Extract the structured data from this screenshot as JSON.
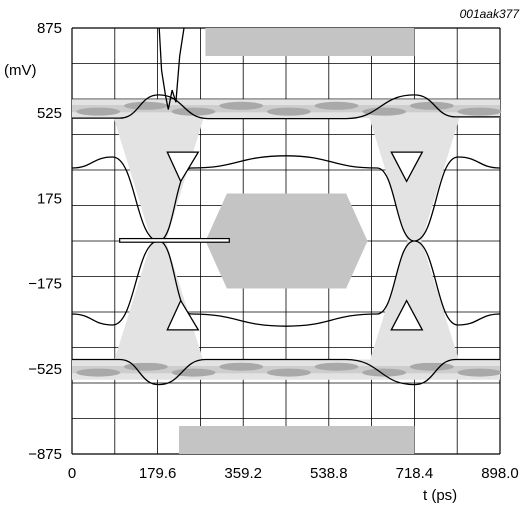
{
  "chart_data": {
    "type": "eye-diagram",
    "figure_id": "001aak377",
    "xlabel": "t (ps)",
    "ylabel": "(mV)",
    "xlim": [
      0,
      898.0
    ],
    "ylim": [
      -875,
      875
    ],
    "x_ticks": [
      0,
      179.6,
      359.2,
      538.8,
      718.4,
      898.0
    ],
    "x_tick_labels": [
      "0",
      "179.6",
      "359.2",
      "538.8",
      "718.4",
      "898.0"
    ],
    "y_ticks": [
      875,
      525,
      175,
      -175,
      -525,
      -875
    ],
    "y_tick_labels": [
      "875",
      "525",
      "175",
      "−175",
      "−525",
      "−875"
    ],
    "grid": true,
    "colors": {
      "mask": "#c4c4c4",
      "trace_dark": "#a9a9a9",
      "trace_mid": "#cdcdcd",
      "trace_light": "#e3e3e3",
      "line": "#000000"
    },
    "center_mask_polygon": [
      [
        280,
        0
      ],
      [
        325,
        195
      ],
      [
        575,
        195
      ],
      [
        620,
        0
      ],
      [
        575,
        -195
      ],
      [
        325,
        -195
      ]
    ],
    "top_mask_rect": {
      "x": [
        280,
        718.4
      ],
      "y": [
        760,
        875
      ]
    },
    "bottom_mask_rect": {
      "x": [
        224.5,
        718.4
      ],
      "y": [
        -760,
        -875
      ]
    },
    "upper_rail": {
      "x": [
        0,
        898
      ],
      "y_top": 582,
      "y_bottom": 505
    },
    "lower_rail": {
      "x": [
        0,
        898
      ],
      "y_top": -487,
      "y_bottom": -570
    },
    "eye_outline": [
      [
        [
          0,
          505
        ],
        [
          100,
          505
        ],
        [
          182,
          600
        ],
        [
          286,
          503
        ],
        [
          575,
          503
        ],
        [
          718.4,
          600
        ],
        [
          805,
          510
        ],
        [
          898,
          510
        ]
      ],
      [
        [
          0,
          -487
        ],
        [
          100,
          -487
        ],
        [
          182,
          -590
        ],
        [
          280,
          -487
        ],
        [
          575,
          -487
        ],
        [
          718.4,
          -590
        ],
        [
          805,
          -487
        ],
        [
          898,
          -487
        ]
      ],
      [
        [
          0,
          300
        ],
        [
          85,
          345
        ],
        [
          182,
          0
        ],
        [
          85,
          -345
        ],
        [
          0,
          -300
        ]
      ],
      [
        [
          898,
          300
        ],
        [
          810,
          345
        ],
        [
          718.4,
          0
        ],
        [
          810,
          -345
        ],
        [
          898,
          -300
        ]
      ],
      [
        [
          182,
          0
        ],
        [
          250,
          300
        ],
        [
          449,
          350
        ],
        [
          640,
          300
        ],
        [
          718.4,
          0
        ],
        [
          640,
          -300
        ],
        [
          449,
          -350
        ],
        [
          250,
          -300
        ],
        [
          182,
          0
        ]
      ]
    ],
    "inner_triangles": [
      [
        [
          200,
          365
        ],
        [
          265,
          365
        ],
        [
          228,
          245
        ]
      ],
      [
        [
          200,
          -365
        ],
        [
          265,
          -365
        ],
        [
          228,
          -245
        ]
      ],
      [
        [
          670,
          365
        ],
        [
          735,
          365
        ],
        [
          702,
          245
        ]
      ],
      [
        [
          670,
          -365
        ],
        [
          735,
          -365
        ],
        [
          702,
          -245
        ]
      ]
    ],
    "jitter_bar": {
      "x": [
        100,
        330
      ],
      "y": [
        -5,
        10
      ]
    },
    "overshoot_spike": [
      [
        183,
        875
      ],
      [
        188,
        700
      ],
      [
        196,
        600
      ],
      [
        202,
        540
      ],
      [
        210,
        620
      ],
      [
        218,
        570
      ],
      [
        226,
        760
      ],
      [
        235,
        875
      ]
    ]
  }
}
